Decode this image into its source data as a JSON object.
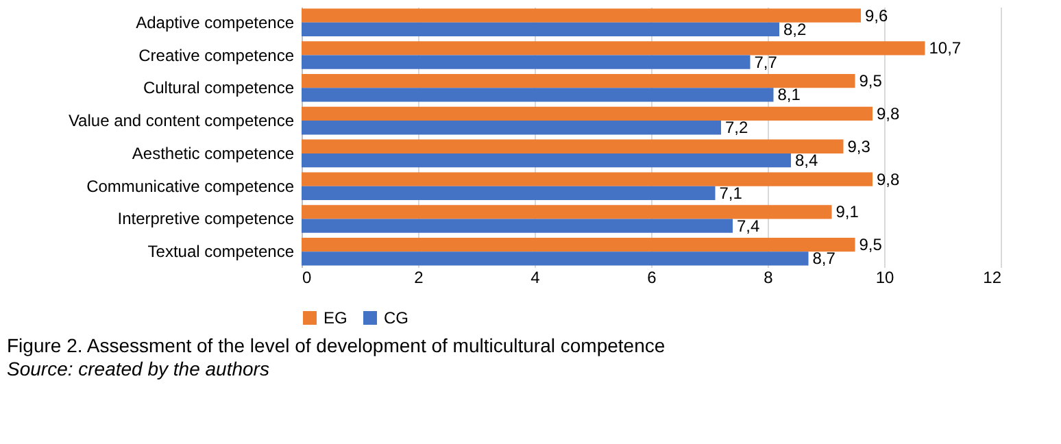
{
  "chart_data": {
    "type": "bar",
    "orientation": "horizontal",
    "categories": [
      "Adaptive competence",
      "Creative competence",
      "Cultural competence",
      "Value and content competence",
      "Aesthetic competence",
      "Communicative competence",
      "Interpretive competence",
      "Textual competence"
    ],
    "series": [
      {
        "name": "EG",
        "color": "#ed7d31",
        "values": [
          9.6,
          10.7,
          9.5,
          9.8,
          9.3,
          9.8,
          9.1,
          9.5
        ],
        "value_labels": [
          "9,6",
          "10,7",
          "9,5",
          "9,8",
          "9,3",
          "9,8",
          "9,1",
          "9,5"
        ]
      },
      {
        "name": "CG",
        "color": "#4472c4",
        "values": [
          8.2,
          7.7,
          8.1,
          7.2,
          8.4,
          7.1,
          7.4,
          8.7
        ],
        "value_labels": [
          "8,2",
          "7,7",
          "8,1",
          "7,2",
          "8,4",
          "7,1",
          "7,4",
          "8,7"
        ]
      }
    ],
    "xlim": [
      0,
      12
    ],
    "xticks": [
      0,
      2,
      4,
      6,
      8,
      10,
      12
    ],
    "grid": "x",
    "legend": "bottom",
    "annotations": [
      "Figure 2. Assessment of the level of development of multicultural competence",
      "Source: created by the authors"
    ]
  }
}
